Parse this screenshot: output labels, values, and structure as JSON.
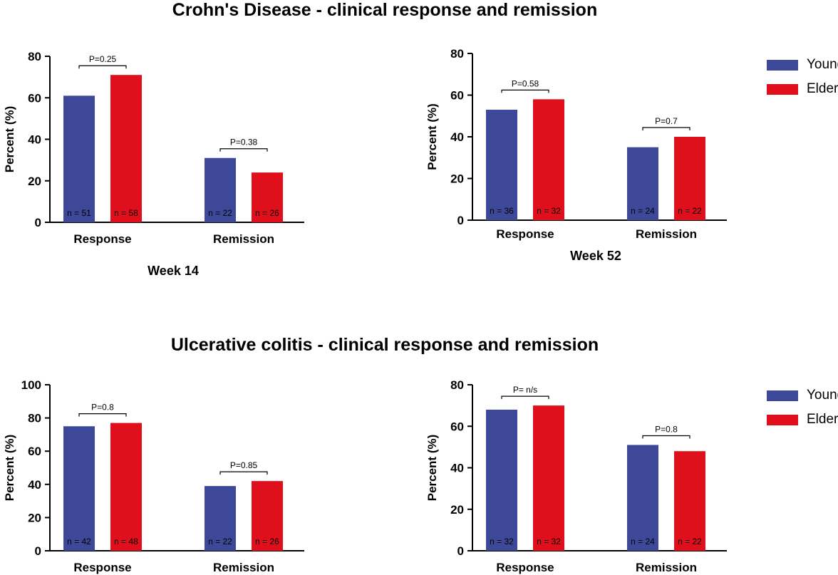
{
  "titles": {
    "top": "Crohn's Disease - clinical response and remission",
    "bottom": "Ulcerative colitis - clinical response and remission"
  },
  "legend": [
    {
      "name": "Young",
      "color": "#3d4898"
    },
    {
      "name": "Elderly",
      "color": "#e00f1c"
    }
  ],
  "colors": {
    "young": "#3d4898",
    "elderly": "#e00f1c"
  },
  "chart_data": [
    {
      "type": "bar",
      "group": "Crohn's Disease",
      "xlabel": "Week 14",
      "ylabel": "Percent  (%)",
      "ylim": [
        0,
        80
      ],
      "yticks": [
        0,
        20,
        40,
        60,
        80
      ],
      "categories": [
        "Response",
        "Remission"
      ],
      "series": [
        {
          "name": "Young",
          "values": [
            61,
            31
          ],
          "n_labels": [
            "n = 51",
            "n = 22"
          ]
        },
        {
          "name": "Elderly",
          "values": [
            71,
            24
          ],
          "n_labels": [
            "n = 58",
            "n = 26"
          ]
        }
      ],
      "p_values": [
        "P=0.25",
        "P=0.38"
      ]
    },
    {
      "type": "bar",
      "group": "Crohn's Disease",
      "xlabel": "Week 52",
      "ylabel": "Percent (%)",
      "ylim": [
        0,
        80
      ],
      "yticks": [
        0,
        20,
        40,
        60,
        80
      ],
      "categories": [
        "Response",
        "Remission"
      ],
      "series": [
        {
          "name": "Young",
          "values": [
            53,
            35
          ],
          "n_labels": [
            "n = 36",
            "n = 24"
          ]
        },
        {
          "name": "Elderly",
          "values": [
            58,
            40
          ],
          "n_labels": [
            "n = 32",
            "n = 22"
          ]
        }
      ],
      "p_values": [
        "P=0.58",
        "P=0.7"
      ]
    },
    {
      "type": "bar",
      "group": "Ulcerative colitis",
      "xlabel": "",
      "ylabel": "Percent (%)",
      "ylim": [
        0,
        100
      ],
      "yticks": [
        0,
        20,
        40,
        60,
        80,
        100
      ],
      "categories": [
        "Response",
        "Remission"
      ],
      "series": [
        {
          "name": "Young",
          "values": [
            75,
            39
          ],
          "n_labels": [
            "n = 42",
            "n = 22"
          ]
        },
        {
          "name": "Elderly",
          "values": [
            77,
            42
          ],
          "n_labels": [
            "n = 48",
            "n = 26"
          ]
        }
      ],
      "p_values": [
        "P=0.8",
        "P=0.85"
      ]
    },
    {
      "type": "bar",
      "group": "Ulcerative colitis",
      "xlabel": "",
      "ylabel": "Percent (%)",
      "ylim": [
        0,
        80
      ],
      "yticks": [
        0,
        20,
        40,
        60,
        80
      ],
      "categories": [
        "Response",
        "Remission"
      ],
      "series": [
        {
          "name": "Young",
          "values": [
            68,
            51
          ],
          "n_labels": [
            "n = 32",
            "n = 24"
          ]
        },
        {
          "name": "Elderly",
          "values": [
            70,
            48
          ],
          "n_labels": [
            "n = 32",
            "n = 22"
          ]
        }
      ],
      "p_values": [
        "P= n/s",
        "P=0.8"
      ]
    }
  ]
}
